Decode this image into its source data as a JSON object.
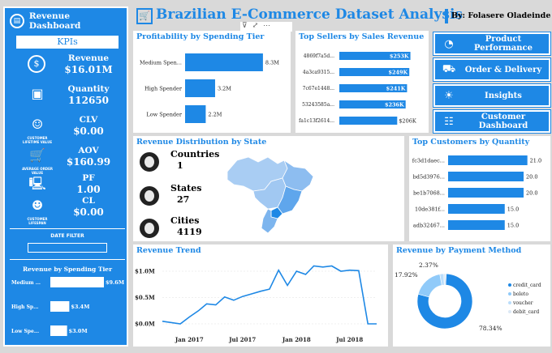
{
  "sidebar": {
    "title": "Revenue Dashboard",
    "kpi_header": "KPIs",
    "kpis": [
      {
        "label": "Revenue",
        "value": "$16.01M",
        "icon": "revenue-icon",
        "caption": ""
      },
      {
        "label": "Quantity",
        "value": "112650",
        "icon": "box-icon",
        "caption": ""
      },
      {
        "label": "CLV",
        "value": "$0.00",
        "icon": "customer-lifetime-value-icon",
        "caption": "CUSTOMER LIFETIME VALUE"
      },
      {
        "label": "AOV",
        "value": "$160.99",
        "icon": "cart-icon",
        "caption": "AVERAGE ORDER VALUE"
      },
      {
        "label": "PF",
        "value": "1.00",
        "icon": "purchase-frequency-icon",
        "caption": ""
      },
      {
        "label": "CL",
        "value": "$0.00",
        "icon": "customer-lifespan-icon",
        "caption": "CUSTOMER LIFESPAN"
      }
    ],
    "date_filter_label": "DATE FILTER",
    "spending_tier_title": "Revenue by Spending Tier"
  },
  "header": {
    "title": "Brazilian E-Commerce Dataset Analysis",
    "author": "By: Folasere Oladeinde"
  },
  "nav": [
    {
      "label": "Product Performance",
      "icon": "gauge-icon"
    },
    {
      "label": "Order & Delivery",
      "icon": "truck-icon"
    },
    {
      "label": "Insights",
      "icon": "lightbulb-icon"
    },
    {
      "label": "Customer Dashboard",
      "icon": "people-icon"
    }
  ],
  "state_stats": [
    {
      "label": "Countries",
      "value": "1"
    },
    {
      "label": "States",
      "value": "27"
    },
    {
      "label": "Cities",
      "value": "4119"
    }
  ],
  "colors": {
    "accent": "#1e88e5",
    "light": "#90caf9",
    "background": "#d9d9d9"
  },
  "chart_data": [
    {
      "id": "profitability",
      "type": "bar",
      "orientation": "horizontal",
      "title": "Profitability by Spending Tier",
      "categories": [
        "Medium Spen...",
        "High Spender",
        "Low Spender"
      ],
      "values": [
        8.3,
        3.2,
        2.2
      ],
      "value_labels": [
        "8.3M",
        "3.2M",
        "2.2M"
      ],
      "xlim": [
        0,
        9
      ]
    },
    {
      "id": "top_sellers",
      "type": "bar",
      "orientation": "horizontal",
      "title": "Top Sellers by Sales Revenue",
      "categories": [
        "4869f7a5d...",
        "4a3ca9315...",
        "7c67e1448...",
        "53243585a...",
        "fa1c13f2614..."
      ],
      "values": [
        253,
        249,
        241,
        236,
        206
      ],
      "value_labels": [
        "$253K",
        "$249K",
        "$241K",
        "$236K",
        "$206K"
      ],
      "xlim": [
        0,
        260
      ]
    },
    {
      "id": "top_customers",
      "type": "bar",
      "orientation": "horizontal",
      "title": "Top Customers by Quantity",
      "categories": [
        "fc3d1daec...",
        "bd5d3976...",
        "be1b7068...",
        "10de381f...",
        "adb32467..."
      ],
      "values": [
        21.0,
        20.0,
        20.0,
        15.0,
        15.0
      ],
      "value_labels": [
        "21.0",
        "20.0",
        "20.0",
        "15.0",
        "15.0"
      ],
      "xlim": [
        0,
        21.5
      ]
    },
    {
      "id": "spending_tier_revenue",
      "type": "bar",
      "orientation": "horizontal",
      "title": "Revenue by Spending Tier",
      "categories": [
        "Medium ...",
        "High Sp...",
        "Low Spe..."
      ],
      "values": [
        9.6,
        3.4,
        3.0
      ],
      "value_labels": [
        "$9.6M",
        "$3.4M",
        "$3.0M"
      ],
      "xlim": [
        0,
        9.6
      ]
    },
    {
      "id": "revenue_trend",
      "type": "line",
      "title": "Revenue Trend",
      "x": [
        "2016-10",
        "2016-12",
        "2017-01",
        "2017-02",
        "2017-03",
        "2017-04",
        "2017-05",
        "2017-06",
        "2017-07",
        "2017-08",
        "2017-09",
        "2017-10",
        "2017-11",
        "2017-12",
        "2018-01",
        "2018-02",
        "2018-03",
        "2018-04",
        "2018-05",
        "2018-06",
        "2018-07",
        "2018-08",
        "2018-09",
        "2018-10"
      ],
      "y": [
        0.05,
        0.0,
        0.13,
        0.25,
        0.38,
        0.36,
        0.51,
        0.45,
        0.52,
        0.57,
        0.62,
        0.66,
        1.02,
        0.73,
        1.0,
        0.94,
        1.1,
        1.08,
        1.1,
        1.0,
        1.02,
        1.01,
        0.0,
        0.0
      ],
      "xticks": [
        "Jan 2017",
        "Jul 2017",
        "Jan 2018",
        "Jul 2018"
      ],
      "yticks": [
        "$0.0M",
        "$0.5M",
        "$1.0M"
      ],
      "ylim": [
        0,
        1.2
      ]
    },
    {
      "id": "payment_method",
      "type": "pie",
      "donut": true,
      "title": "Revenue by Payment Method",
      "categories": [
        "credit_card",
        "boleto",
        "voucher",
        "debit_card"
      ],
      "values": [
        78.34,
        17.92,
        2.37,
        1.37
      ],
      "value_labels": [
        "78.34%",
        "17.92%",
        "2.37%",
        ""
      ],
      "colors": [
        "#1e88e5",
        "#90caf9",
        "#bbdefb",
        "#dce9f5"
      ],
      "legend": "right"
    }
  ]
}
